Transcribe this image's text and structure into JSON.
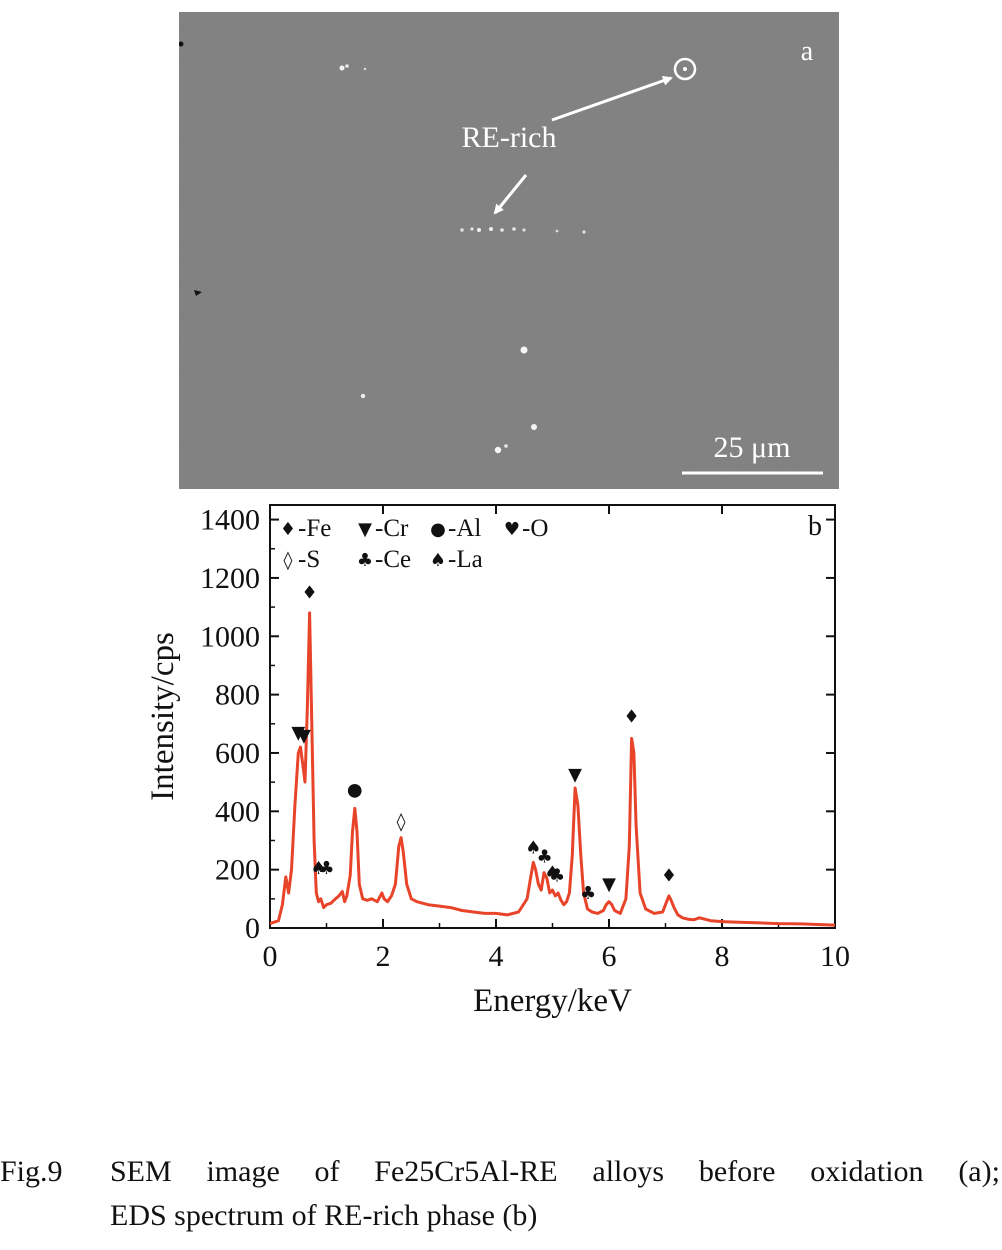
{
  "panel_a": {
    "label": "a",
    "annotation": "RE-rich",
    "scalebar": "25 μm"
  },
  "chart_data": {
    "type": "line",
    "panel_label": "b",
    "title": "",
    "xlabel": "Energy/keV",
    "ylabel": "Intensity/cps",
    "xlim": [
      0,
      10
    ],
    "ylim": [
      0,
      1450
    ],
    "xticks": [
      0,
      2,
      4,
      6,
      8,
      10
    ],
    "yticks": [
      0,
      200,
      400,
      600,
      800,
      1000,
      1200,
      1400
    ],
    "series": [
      {
        "name": "EDS spectrum",
        "color": "#e8442a",
        "x": [
          0.0,
          0.15,
          0.22,
          0.28,
          0.33,
          0.38,
          0.44,
          0.5,
          0.54,
          0.58,
          0.62,
          0.66,
          0.7,
          0.74,
          0.78,
          0.82,
          0.86,
          0.9,
          0.95,
          1.0,
          1.08,
          1.16,
          1.22,
          1.28,
          1.32,
          1.36,
          1.42,
          1.46,
          1.5,
          1.54,
          1.58,
          1.64,
          1.72,
          1.8,
          1.9,
          1.98,
          2.02,
          2.08,
          2.15,
          2.22,
          2.28,
          2.32,
          2.36,
          2.42,
          2.5,
          2.6,
          2.8,
          3.0,
          3.2,
          3.4,
          3.6,
          3.8,
          4.0,
          4.2,
          4.4,
          4.55,
          4.62,
          4.66,
          4.7,
          4.75,
          4.8,
          4.85,
          4.9,
          4.95,
          5.0,
          5.05,
          5.1,
          5.15,
          5.2,
          5.25,
          5.3,
          5.35,
          5.4,
          5.45,
          5.5,
          5.55,
          5.62,
          5.7,
          5.8,
          5.9,
          5.95,
          6.0,
          6.05,
          6.1,
          6.2,
          6.3,
          6.36,
          6.4,
          6.44,
          6.48,
          6.55,
          6.65,
          6.8,
          6.95,
          7.02,
          7.06,
          7.1,
          7.15,
          7.22,
          7.3,
          7.4,
          7.5,
          7.6,
          7.8,
          8.0,
          8.3,
          8.6,
          9.0,
          9.4,
          9.7,
          10.0
        ],
        "y": [
          15,
          25,
          80,
          175,
          120,
          200,
          420,
          600,
          620,
          560,
          500,
          750,
          1080,
          700,
          300,
          120,
          90,
          100,
          70,
          80,
          85,
          100,
          110,
          125,
          90,
          110,
          180,
          330,
          410,
          330,
          150,
          100,
          95,
          100,
          90,
          120,
          100,
          90,
          110,
          150,
          280,
          310,
          260,
          150,
          100,
          90,
          80,
          75,
          70,
          60,
          55,
          50,
          50,
          45,
          55,
          100,
          180,
          225,
          200,
          150,
          130,
          190,
          170,
          120,
          130,
          110,
          120,
          95,
          80,
          90,
          120,
          250,
          480,
          420,
          250,
          120,
          65,
          55,
          50,
          60,
          80,
          90,
          80,
          60,
          50,
          100,
          280,
          650,
          600,
          350,
          120,
          65,
          50,
          55,
          90,
          110,
          95,
          70,
          45,
          35,
          30,
          28,
          35,
          25,
          22,
          20,
          18,
          15,
          14,
          12,
          10
        ]
      }
    ],
    "legend": {
      "position": "top-left",
      "entries": [
        {
          "symbol": "♦",
          "label": "-Fe"
        },
        {
          "symbol": "▼",
          "label": "-Cr"
        },
        {
          "symbol": "●",
          "label": "-Al"
        },
        {
          "symbol": "♥",
          "label": "-O"
        },
        {
          "symbol": "◊",
          "label": "-S"
        },
        {
          "symbol": "♣",
          "label": "-Ce"
        },
        {
          "symbol": "♠",
          "label": "-La"
        }
      ]
    },
    "peak_markers": [
      {
        "symbol": "♦",
        "x": 0.7,
        "y": 1130
      },
      {
        "symbol": "▼",
        "x": 0.5,
        "y": 650
      },
      {
        "symbol": "▼",
        "x": 0.6,
        "y": 640
      },
      {
        "symbol": "♠",
        "x": 0.86,
        "y": 185
      },
      {
        "symbol": "♣",
        "x": 1.0,
        "y": 185
      },
      {
        "symbol": "●",
        "x": 1.5,
        "y": 455
      },
      {
        "symbol": "◊",
        "x": 2.32,
        "y": 345
      },
      {
        "symbol": "♠",
        "x": 4.66,
        "y": 255
      },
      {
        "symbol": "♣",
        "x": 4.86,
        "y": 225
      },
      {
        "symbol": "♠",
        "x": 5.0,
        "y": 170
      },
      {
        "symbol": "♣",
        "x": 5.08,
        "y": 160
      },
      {
        "symbol": "▼",
        "x": 5.4,
        "y": 505
      },
      {
        "symbol": "♣",
        "x": 5.63,
        "y": 100
      },
      {
        "symbol": "▼",
        "x": 6.0,
        "y": 130
      },
      {
        "symbol": "♦",
        "x": 6.4,
        "y": 705
      },
      {
        "symbol": "♦",
        "x": 7.06,
        "y": 160
      }
    ]
  },
  "caption": {
    "number": "Fig.9",
    "line1": "SEM image of Fe25Cr5Al-RE alloys before oxidation (a);",
    "line2": "EDS spectrum of RE-rich phase (b)"
  }
}
